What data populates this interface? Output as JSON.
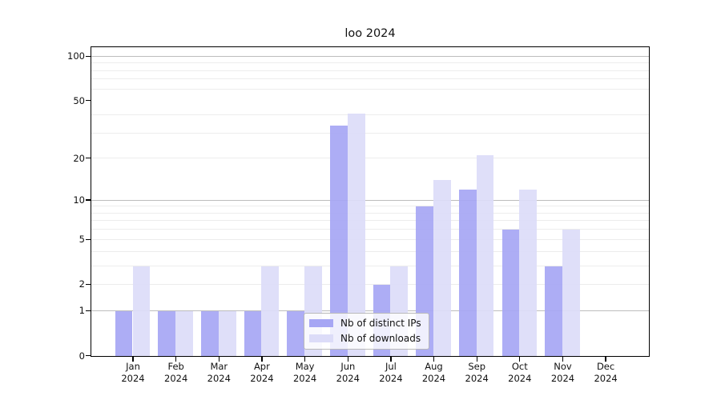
{
  "chart_data": {
    "type": "bar",
    "title": "loo 2024",
    "year_label": "2024",
    "categories": [
      "Jan",
      "Feb",
      "Mar",
      "Apr",
      "May",
      "Jun",
      "Jul",
      "Aug",
      "Sep",
      "Oct",
      "Nov",
      "Dec"
    ],
    "series": [
      {
        "name": "Nb of distinct IPs",
        "color": "#a6a6f4",
        "values": [
          1,
          1,
          1,
          1,
          1,
          34,
          2,
          9,
          12,
          6,
          3,
          0
        ]
      },
      {
        "name": "Nb of downloads",
        "color": "#dcdcf8",
        "values": [
          3,
          1,
          1,
          3,
          3,
          41,
          3,
          14,
          21,
          12,
          6,
          0
        ]
      }
    ],
    "yscale": "log1p",
    "y_ticks": [
      0,
      1,
      2,
      5,
      10,
      20,
      50,
      100
    ],
    "ylim": [
      0,
      115
    ],
    "grid": "horizontal",
    "major_grid_values": [
      1,
      10,
      100
    ],
    "minor_grid_values": [
      2,
      3,
      4,
      5,
      6,
      7,
      8,
      9,
      20,
      30,
      40,
      60,
      70,
      80,
      90
    ],
    "legend_position": "inside-bottom-center",
    "colors": {
      "axis": "#000000",
      "major_grid": "#bdbdbd",
      "minor_grid": "#ececec",
      "background": "#ffffff"
    }
  }
}
